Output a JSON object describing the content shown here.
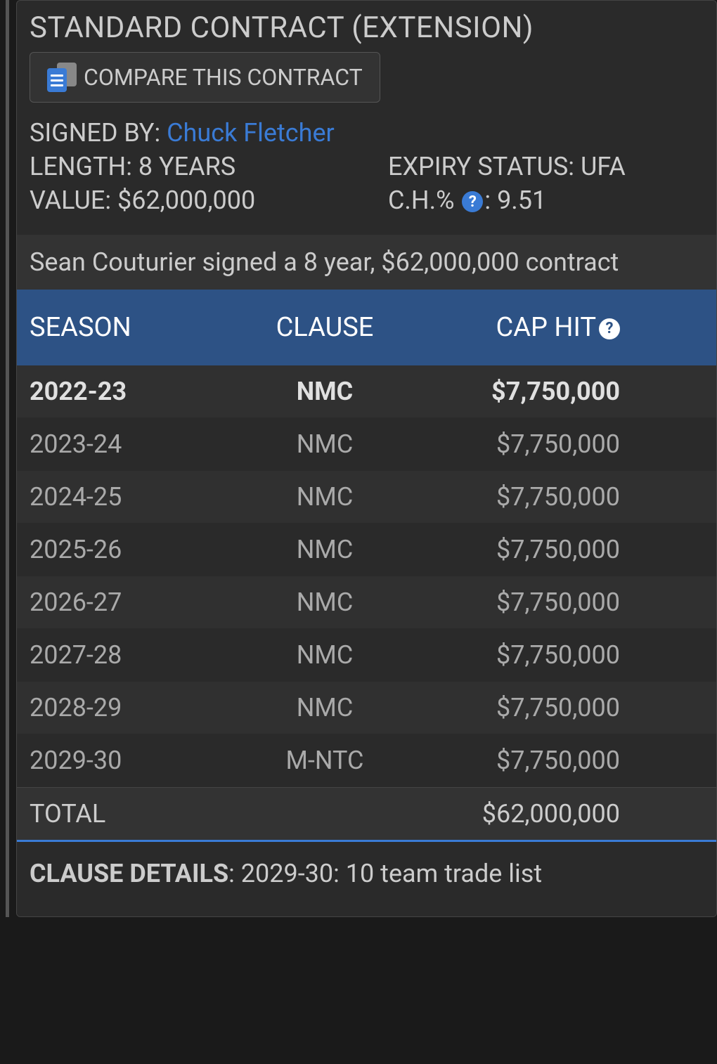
{
  "contract": {
    "title": "STANDARD CONTRACT (EXTENSION)",
    "compare_label": "COMPARE THIS CONTRACT",
    "signed_by_label": "SIGNED BY: ",
    "signed_by_name": "Chuck Fletcher",
    "length_label": "LENGTH: ",
    "length_value": "8 YEARS",
    "expiry_label": "EXPIRY STATUS: ",
    "expiry_value": "UFA",
    "value_label": "VALUE: ",
    "value_value": "$62,000,000",
    "ch_label": "C.H.% ",
    "ch_suffix": ": ",
    "ch_value": "9.51",
    "summary": "Sean Couturier signed a 8 year, $62,000,000 contract"
  },
  "table": {
    "headers": {
      "season": "SEASON",
      "clause": "CLAUSE",
      "caphit": "CAP HIT"
    },
    "rows": [
      {
        "season": "2022-23",
        "clause": "NMC",
        "caphit": "$7,750,000",
        "current": true
      },
      {
        "season": "2023-24",
        "clause": "NMC",
        "caphit": "$7,750,000",
        "current": false
      },
      {
        "season": "2024-25",
        "clause": "NMC",
        "caphit": "$7,750,000",
        "current": false
      },
      {
        "season": "2025-26",
        "clause": "NMC",
        "caphit": "$7,750,000",
        "current": false
      },
      {
        "season": "2026-27",
        "clause": "NMC",
        "caphit": "$7,750,000",
        "current": false
      },
      {
        "season": "2027-28",
        "clause": "NMC",
        "caphit": "$7,750,000",
        "current": false
      },
      {
        "season": "2028-29",
        "clause": "NMC",
        "caphit": "$7,750,000",
        "current": false
      },
      {
        "season": "2029-30",
        "clause": "M-NTC",
        "caphit": "$7,750,000",
        "current": false
      }
    ],
    "total": {
      "label": "TOTAL",
      "clause": "",
      "caphit": "$62,000,000"
    }
  },
  "clause_details": {
    "label": "CLAUSE DETAILS",
    "text": ": 2029-30: 10 team trade list"
  },
  "colors": {
    "background": "#1a1a1a",
    "card_bg": "#2a2a2a",
    "header_bg": "#2d5285",
    "link": "#3a7bd5",
    "text": "#cccccc",
    "text_dim": "#aaaaaa",
    "row_odd": "#303030",
    "row_even": "#2a2a2a"
  }
}
